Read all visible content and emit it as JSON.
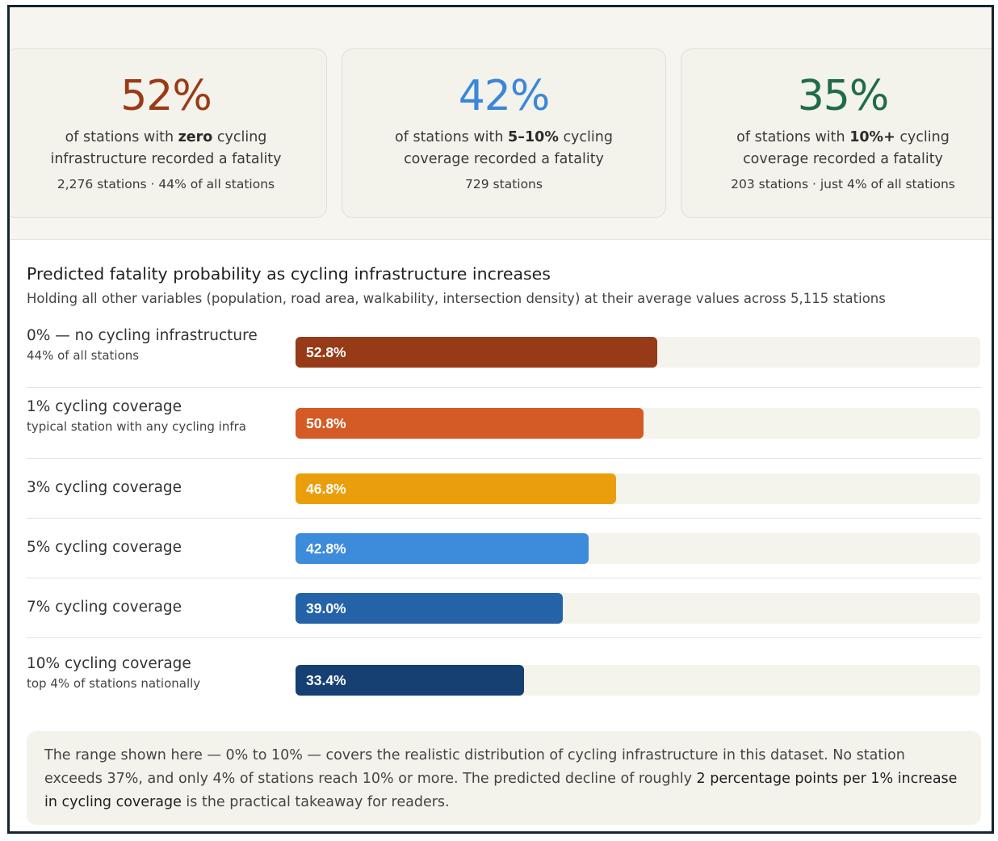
{
  "stat_cards": [
    {
      "value": "52%",
      "color": "#9a3b16",
      "desc_pre": "of stations with ",
      "desc_bold": "zero",
      "desc_post": " cycling infrastructure recorded a fatality",
      "footnote": "2,276 stations · 44% of all stations"
    },
    {
      "value": "42%",
      "color": "#3b87d8",
      "desc_pre": "of stations with ",
      "desc_bold": "5–10%",
      "desc_post": " cycling coverage recorded a fatality",
      "footnote": "729 stations"
    },
    {
      "value": "35%",
      "color": "#1f6b4a",
      "desc_pre": "of stations with ",
      "desc_bold": "10%+",
      "desc_post": " cycling coverage recorded a fatality",
      "footnote": "203 stations · just 4% of all stations"
    }
  ],
  "chart_data": {
    "type": "bar",
    "orientation": "horizontal",
    "title": "Predicted fatality probability as cycling infrastructure increases",
    "subtitle": "Holding all other variables (population, road area, walkability, intersection density) at their average values across 5,115 stations",
    "xlim": [
      0,
      100
    ],
    "unit": "%",
    "categories": [
      "0% — no cycling infrastructure",
      "1% cycling coverage",
      "3% cycling coverage",
      "5% cycling coverage",
      "7% cycling coverage",
      "10% cycling coverage"
    ],
    "sublabels": [
      "44% of all stations",
      "typical station with any cycling infra",
      "",
      "",
      "",
      "top 4% of stations nationally"
    ],
    "values": [
      52.8,
      50.8,
      46.8,
      42.8,
      39.0,
      33.4
    ],
    "value_labels": [
      "52.8%",
      "50.8%",
      "46.8%",
      "42.8%",
      "39.0%",
      "33.4%"
    ],
    "colors": [
      "#963a17",
      "#d45a26",
      "#eb9e0c",
      "#3d8bdb",
      "#2563a8",
      "#163f72"
    ]
  },
  "note": {
    "text_pre": "The range shown here — 0% to 10% — covers the realistic distribution of cycling infrastructure in this dataset. No station exceeds 37%, and only 4% of stations reach 10% or more. The predicted decline of roughly ",
    "text_bold": "2 percentage points per 1% increase in cycling coverage",
    "text_post": " is the practical takeaway for readers."
  }
}
